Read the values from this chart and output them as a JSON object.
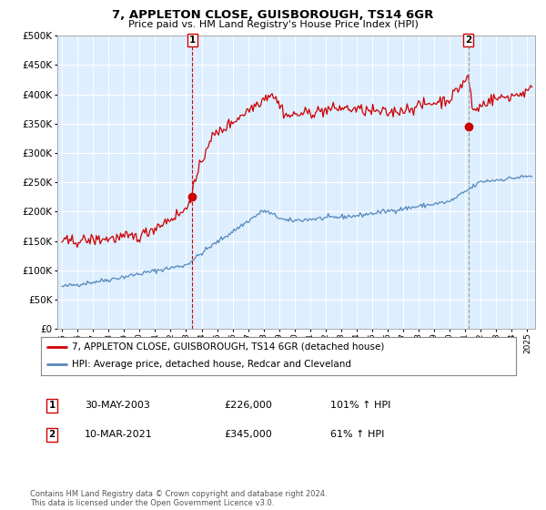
{
  "title": "7, APPLETON CLOSE, GUISBOROUGH, TS14 6GR",
  "subtitle": "Price paid vs. HM Land Registry's House Price Index (HPI)",
  "ylim": [
    0,
    500000
  ],
  "yticks": [
    0,
    50000,
    100000,
    150000,
    200000,
    250000,
    300000,
    350000,
    400000,
    450000,
    500000
  ],
  "xlim_start": 1994.7,
  "xlim_end": 2025.5,
  "sale1_date": 2003.41,
  "sale1_price": 226000,
  "sale1_label": "1",
  "sale2_date": 2021.19,
  "sale2_price": 345000,
  "sale2_label": "2",
  "legend_line1": "7, APPLETON CLOSE, GUISBOROUGH, TS14 6GR (detached house)",
  "legend_line2": "HPI: Average price, detached house, Redcar and Cleveland",
  "table_row1_num": "1",
  "table_row1_date": "30-MAY-2003",
  "table_row1_price": "£226,000",
  "table_row1_hpi": "101% ↑ HPI",
  "table_row2_num": "2",
  "table_row2_date": "10-MAR-2021",
  "table_row2_price": "£345,000",
  "table_row2_hpi": "61% ↑ HPI",
  "footnote": "Contains HM Land Registry data © Crown copyright and database right 2024.\nThis data is licensed under the Open Government Licence v3.0.",
  "red_color": "#cc0000",
  "blue_color": "#5588bb",
  "vline1_color": "#cc0000",
  "vline2_color": "#999999",
  "bg_color": "#ffffff",
  "chart_bg_color": "#ddeeff",
  "grid_color": "#ffffff"
}
